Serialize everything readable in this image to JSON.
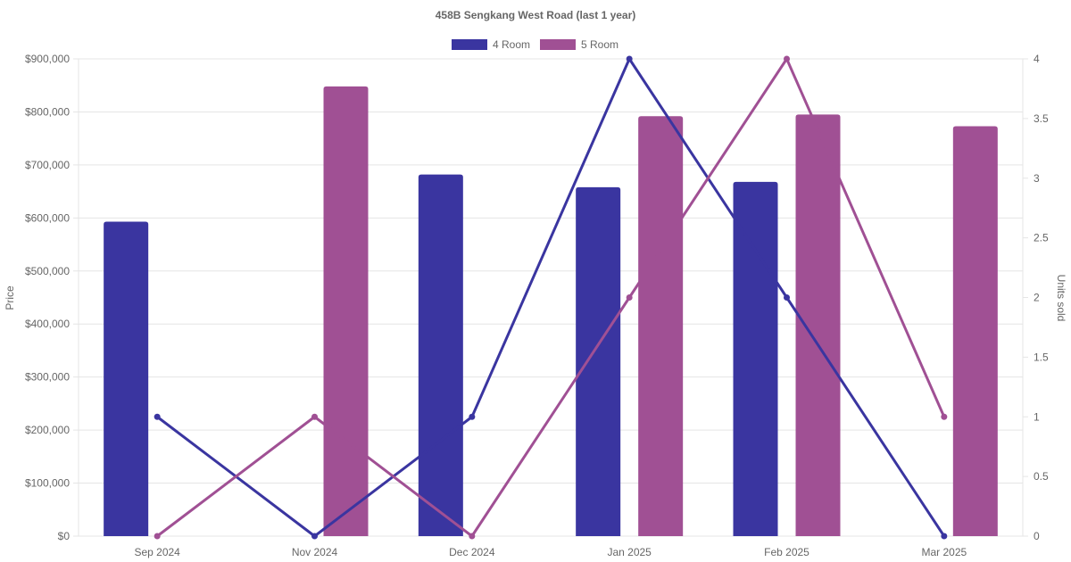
{
  "chart_data": {
    "type": "bar",
    "title": "458B Sengkang West Road (last 1 year)",
    "categories": [
      "Sep 2024",
      "Nov 2024",
      "Dec 2024",
      "Jan 2025",
      "Feb 2025",
      "Mar 2025"
    ],
    "y_left": {
      "label": "Price",
      "ticks": [
        "$0",
        "$100,000",
        "$200,000",
        "$300,000",
        "$400,000",
        "$500,000",
        "$600,000",
        "$700,000",
        "$800,000",
        "$900,000"
      ],
      "ylim": [
        0,
        900000
      ]
    },
    "y_right": {
      "label": "Units sold",
      "ticks": [
        "0",
        "0.5",
        "1",
        "1.5",
        "2",
        "2.5",
        "3",
        "3.5",
        "4"
      ],
      "ylim": [
        0,
        4
      ]
    },
    "series": [
      {
        "name": "4 Room",
        "color": "#3a35a0",
        "bar_values": [
          593000,
          null,
          682000,
          658000,
          668000,
          null
        ],
        "units_sold": [
          1,
          0,
          1,
          4,
          2,
          0
        ]
      },
      {
        "name": "5 Room",
        "color": "#a05094",
        "bar_values": [
          null,
          848000,
          null,
          792000,
          795000,
          773000
        ],
        "units_sold": [
          0,
          1,
          0,
          2,
          4,
          1
        ]
      }
    ],
    "legend_position": "top-center",
    "grid": true
  }
}
